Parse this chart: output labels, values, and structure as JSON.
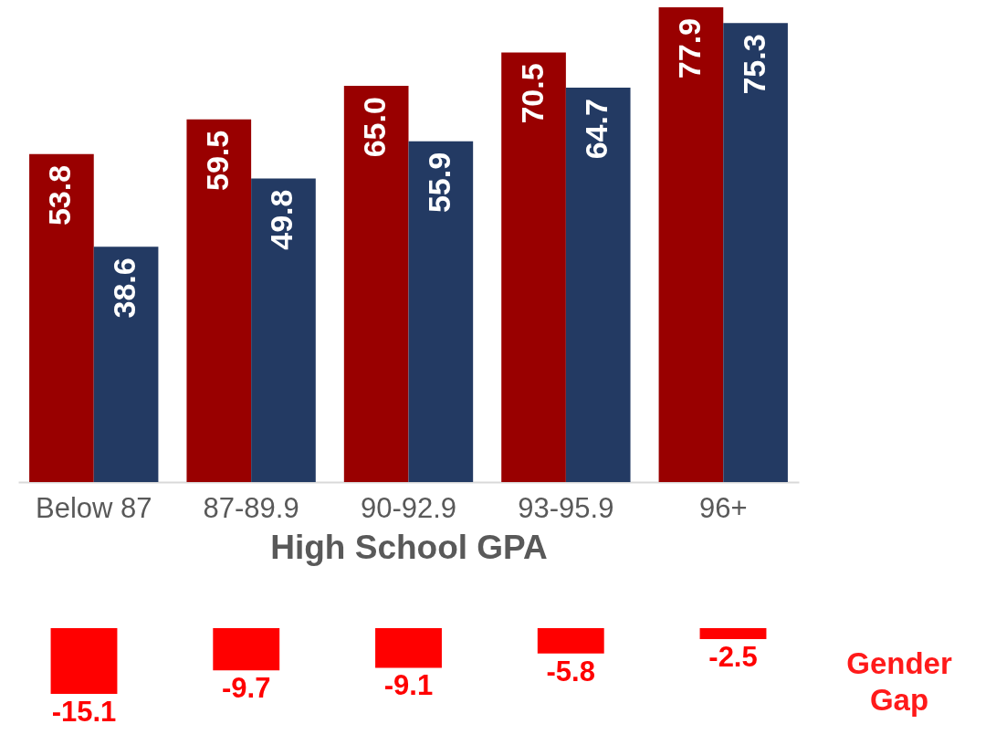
{
  "chart_data": [
    {
      "type": "bar",
      "xlabel": "High School GPA",
      "categories": [
        "Below 87",
        "87-89.9",
        "90-92.9",
        "93-95.9",
        "96+"
      ],
      "series": [
        {
          "color": "#990000",
          "values": [
            53.8,
            59.5,
            65.0,
            70.5,
            77.9
          ],
          "value_labels": [
            "53.8",
            "59.5",
            "65.0",
            "70.5",
            "77.9"
          ]
        },
        {
          "color": "#233a63",
          "values": [
            38.6,
            49.8,
            55.9,
            64.7,
            75.3
          ],
          "value_labels": [
            "38.6",
            "49.8",
            "55.9",
            "64.7",
            "75.3"
          ]
        }
      ],
      "tick_labels": "x",
      "legend": false
    },
    {
      "type": "bar",
      "ylabel": "Gender Gap",
      "categories": [
        null,
        null,
        null,
        null,
        null
      ],
      "values": [
        -15.1,
        -9.7,
        -9.1,
        -5.8,
        -2.5
      ],
      "value_labels": [
        "-15.1",
        "-9.7",
        "-9.1",
        "-5.8",
        "-2.5"
      ],
      "color": "#ff0000",
      "tick_labels": false,
      "legend": false
    }
  ]
}
